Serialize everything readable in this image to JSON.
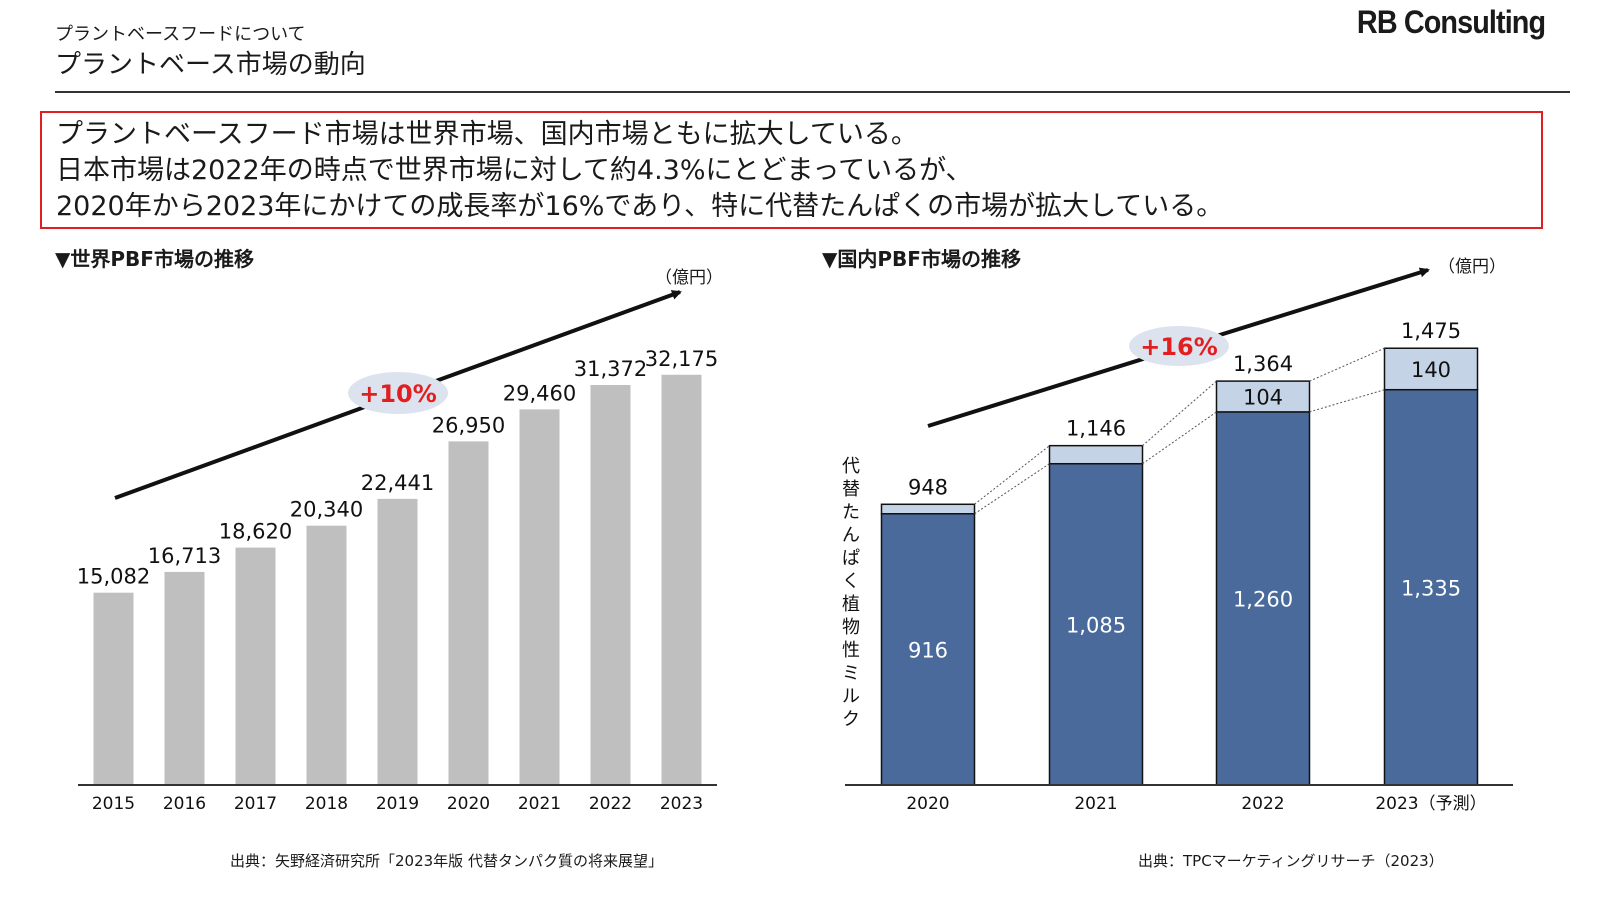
{
  "header": {
    "subtitle": "プラントベースフードについて",
    "title": "プラントベース市場の動向",
    "logo": "RB Consulting"
  },
  "summary": {
    "lines": [
      "プラントベースフード市場は世界市場、国内市場ともに拡大している。",
      "日本市場は2022年の時点で世界市場に対して約4.3%にとどまっているが、",
      "2020年から2023年にかけての成長率が16%であり、特に代替たんぱくの市場が拡大している。"
    ],
    "border_color": "#e02020"
  },
  "chart_data": [
    {
      "type": "bar",
      "title": "▼世界PBF市場の推移",
      "unit": "（億円）",
      "categories": [
        "2015",
        "2016",
        "2017",
        "2018",
        "2019",
        "2020",
        "2021",
        "2022",
        "2023"
      ],
      "values": [
        15082,
        16713,
        18620,
        20340,
        22441,
        26950,
        29460,
        31372,
        32175
      ],
      "value_labels": [
        "15,082",
        "16,713",
        "18,620",
        "20,340",
        "22,441",
        "26,950",
        "29,460",
        "31,372",
        "32,175"
      ],
      "ylim": [
        0,
        40000
      ],
      "grid": false,
      "growth_label": "+10%",
      "bar_color": "#bfbfbf",
      "source": "出典：矢野経済研究所「2023年版 代替タンパク質の将来展望」"
    },
    {
      "type": "bar",
      "stacked": true,
      "title": "▼国内PBF市場の推移",
      "unit": "（億円）",
      "categories": [
        "2020",
        "2021",
        "2022",
        "2023（予測）"
      ],
      "series": [
        {
          "name": "植物性ミルク",
          "values": [
            916,
            1085,
            1260,
            1335
          ],
          "labels": [
            "916",
            "1,085",
            "1,260",
            "1,335"
          ],
          "color": "#4a6a9c"
        },
        {
          "name": "代替たんぱく",
          "values": [
            32,
            61,
            104,
            140
          ],
          "labels": [
            "",
            "",
            "104",
            "140"
          ],
          "color": "#c5d3e6"
        }
      ],
      "totals": [
        948,
        1146,
        1364,
        1475
      ],
      "total_labels": [
        "948",
        "1,146",
        "1,364",
        "1,475"
      ],
      "ylim": [
        0,
        1800
      ],
      "grid": false,
      "growth_label": "+16%",
      "side_label_top": "代替たんぱく",
      "side_label_bottom": "植物性ミルク",
      "source": "出典：TPCマーケティングリサーチ（2023）"
    }
  ],
  "colors": {
    "accent_red": "#e02020",
    "growth_bubble": "#dde3ee",
    "axis": "#333333"
  }
}
